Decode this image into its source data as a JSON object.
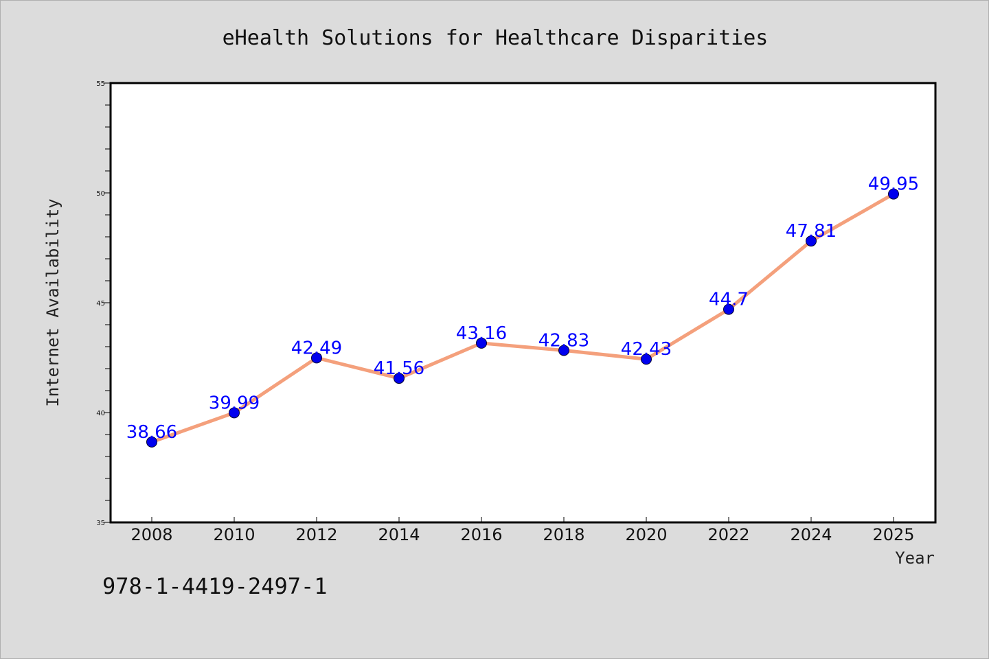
{
  "chart_data": {
    "type": "line",
    "title": "eHealth Solutions for Healthcare Disparities",
    "xlabel": "Year",
    "ylabel": "Internet Availability",
    "categories": [
      "2008",
      "2010",
      "2012",
      "2014",
      "2016",
      "2018",
      "2020",
      "2022",
      "2024",
      "2025"
    ],
    "series": [
      {
        "values": [
          38.66,
          39.99,
          42.49,
          41.56,
          43.16,
          42.83,
          42.43,
          44.7,
          47.81,
          49.95
        ],
        "labels": [
          "38.66",
          "39.99",
          "42.49",
          "41.56",
          "43.16",
          "42.83",
          "42.43",
          "44.7",
          "47.81",
          "49.95"
        ]
      }
    ],
    "ylim": [
      35,
      55
    ],
    "yticks": [
      "35",
      "40",
      "45",
      "50",
      "55"
    ],
    "grid": false,
    "legend": "none",
    "colors": {
      "line": "#f4a07c",
      "marker": "#0000ee",
      "data_label": "#0000ff",
      "plot_background": "#ffffff",
      "figure_background": "#dcdcdc"
    }
  },
  "annotation": {
    "isbn": "978-1-4419-2497-1"
  }
}
